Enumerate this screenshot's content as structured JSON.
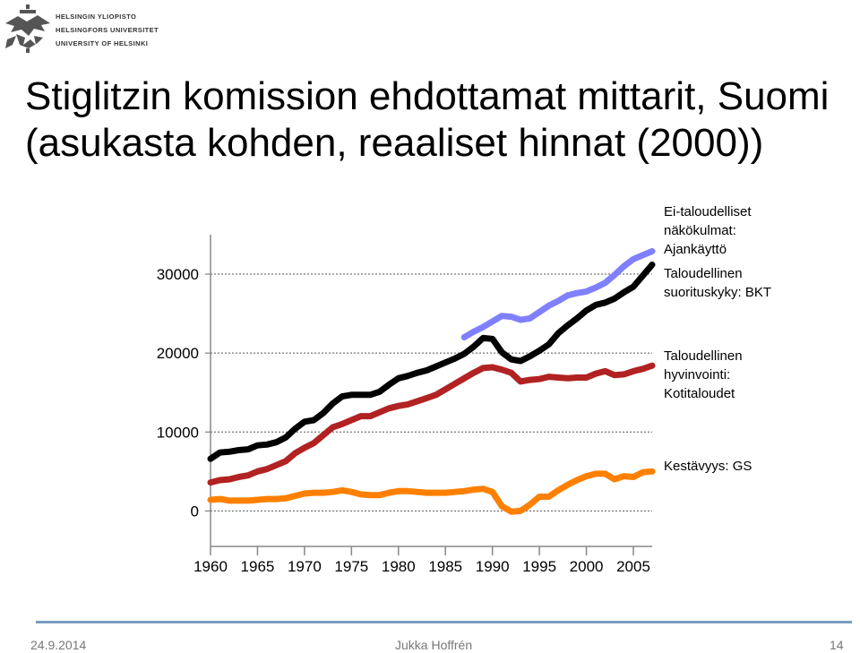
{
  "header": {
    "university_names": [
      "HELSINGIN YLIOPISTO",
      "HELSINGFORS UNIVERSITET",
      "UNIVERSITY OF HELSINKI"
    ]
  },
  "slide": {
    "title_line1": "Stiglitzin komission ehdottamat mittarit, Suomi",
    "title_line2": "(asukasta kohden, reaaliset hinnat (2000))"
  },
  "legend": {
    "ajankaytto": [
      "Ei-taloudelliset",
      "näkökulmat:",
      "Ajankäyttö"
    ],
    "bkt": [
      "Taloudellinen",
      "suorituskyky: BKT"
    ],
    "kotitaloudet": [
      "Taloudellinen",
      "hyvinvointi:",
      "Kotitaloudet"
    ],
    "gs": [
      "Kestävyys: GS"
    ]
  },
  "footer": {
    "date": "24.9.2014",
    "author": "Jukka Hoffrén",
    "page": "14"
  },
  "colors": {
    "bkt": "#000000",
    "kotitaloudet": "#b22222",
    "ajankaytto": "#8080ff",
    "gs": "#ff8000",
    "footer_line": "#7a9cc0"
  },
  "chart_data": {
    "type": "line",
    "x_ticks": [
      1960,
      1965,
      1970,
      1975,
      1980,
      1985,
      1990,
      1995,
      2000,
      2005
    ],
    "y_ticks": [
      0,
      10000,
      20000,
      30000
    ],
    "xlim": [
      1960,
      2007
    ],
    "ylim": [
      -4500,
      35000
    ],
    "grid": "horizontal dashed",
    "series": [
      {
        "key": "ajankaytto",
        "name": "Ei-taloudelliset näkökulmat: Ajankäyttö",
        "x": [
          1987,
          1988,
          1989,
          1990,
          1991,
          1992,
          1993,
          1994,
          1995,
          1996,
          1997,
          1998,
          1999,
          2000,
          2001,
          2002,
          2003,
          2004,
          2005,
          2006,
          2007
        ],
        "y": [
          22000,
          22700,
          23300,
          24000,
          24700,
          24600,
          24200,
          24400,
          25200,
          26000,
          26600,
          27300,
          27600,
          27800,
          28300,
          28900,
          29900,
          31000,
          31900,
          32400,
          32900
        ]
      },
      {
        "key": "bkt",
        "name": "Taloudellinen suorituskyky: BKT",
        "x": [
          1960,
          1961,
          1962,
          1963,
          1964,
          1965,
          1966,
          1967,
          1968,
          1969,
          1970,
          1971,
          1972,
          1973,
          1974,
          1975,
          1976,
          1977,
          1978,
          1979,
          1980,
          1981,
          1982,
          1983,
          1984,
          1985,
          1986,
          1987,
          1988,
          1989,
          1990,
          1991,
          1992,
          1993,
          1994,
          1995,
          1996,
          1997,
          1998,
          1999,
          2000,
          2001,
          2002,
          2003,
          2004,
          2005,
          2006,
          2007
        ],
        "y": [
          6600,
          7400,
          7500,
          7700,
          7800,
          8300,
          8400,
          8700,
          9300,
          10400,
          11300,
          11500,
          12400,
          13600,
          14500,
          14700,
          14700,
          14700,
          15100,
          16000,
          16800,
          17100,
          17500,
          17800,
          18300,
          18800,
          19300,
          19900,
          20800,
          21900,
          21800,
          20100,
          19200,
          19000,
          19600,
          20300,
          21100,
          22500,
          23500,
          24400,
          25400,
          26100,
          26400,
          26900,
          27700,
          28400,
          29800,
          31200
        ]
      },
      {
        "key": "kotitaloudet",
        "name": "Taloudellinen hyvinvointi: Kotitaloudet",
        "x": [
          1960,
          1961,
          1962,
          1963,
          1964,
          1965,
          1966,
          1967,
          1968,
          1969,
          1970,
          1971,
          1972,
          1973,
          1974,
          1975,
          1976,
          1977,
          1978,
          1979,
          1980,
          1981,
          1982,
          1983,
          1984,
          1985,
          1986,
          1987,
          1988,
          1989,
          1990,
          1991,
          1992,
          1993,
          1994,
          1995,
          1996,
          1997,
          1998,
          1999,
          2000,
          2001,
          2002,
          2003,
          2004,
          2005,
          2006,
          2007
        ],
        "y": [
          3600,
          3900,
          4000,
          4300,
          4500,
          5000,
          5300,
          5800,
          6300,
          7300,
          8000,
          8600,
          9600,
          10600,
          11000,
          11500,
          12000,
          12000,
          12500,
          13000,
          13300,
          13500,
          13900,
          14300,
          14700,
          15400,
          16100,
          16800,
          17500,
          18100,
          18200,
          17900,
          17500,
          16400,
          16600,
          16700,
          17000,
          16900,
          16800,
          16900,
          16900,
          17400,
          17700,
          17200,
          17300,
          17700,
          18000,
          18400
        ]
      },
      {
        "key": "gs",
        "name": "Kestävyys: GS",
        "x": [
          1960,
          1961,
          1962,
          1963,
          1964,
          1965,
          1966,
          1967,
          1968,
          1969,
          1970,
          1971,
          1972,
          1973,
          1974,
          1975,
          1976,
          1977,
          1978,
          1979,
          1980,
          1981,
          1982,
          1983,
          1984,
          1985,
          1986,
          1987,
          1988,
          1989,
          1990,
          1991,
          1992,
          1993,
          1994,
          1995,
          1996,
          1997,
          1998,
          1999,
          2000,
          2001,
          2002,
          2003,
          2004,
          2005,
          2006,
          2007
        ],
        "y": [
          1400,
          1500,
          1300,
          1300,
          1300,
          1400,
          1500,
          1500,
          1600,
          1900,
          2200,
          2300,
          2300,
          2400,
          2600,
          2400,
          2100,
          2000,
          2000,
          2300,
          2500,
          2500,
          2400,
          2300,
          2300,
          2300,
          2400,
          2500,
          2700,
          2800,
          2400,
          600,
          -100,
          0,
          800,
          1800,
          1800,
          2600,
          3300,
          3900,
          4400,
          4700,
          4700,
          4000,
          4400,
          4300,
          4900,
          5000
        ]
      }
    ]
  }
}
